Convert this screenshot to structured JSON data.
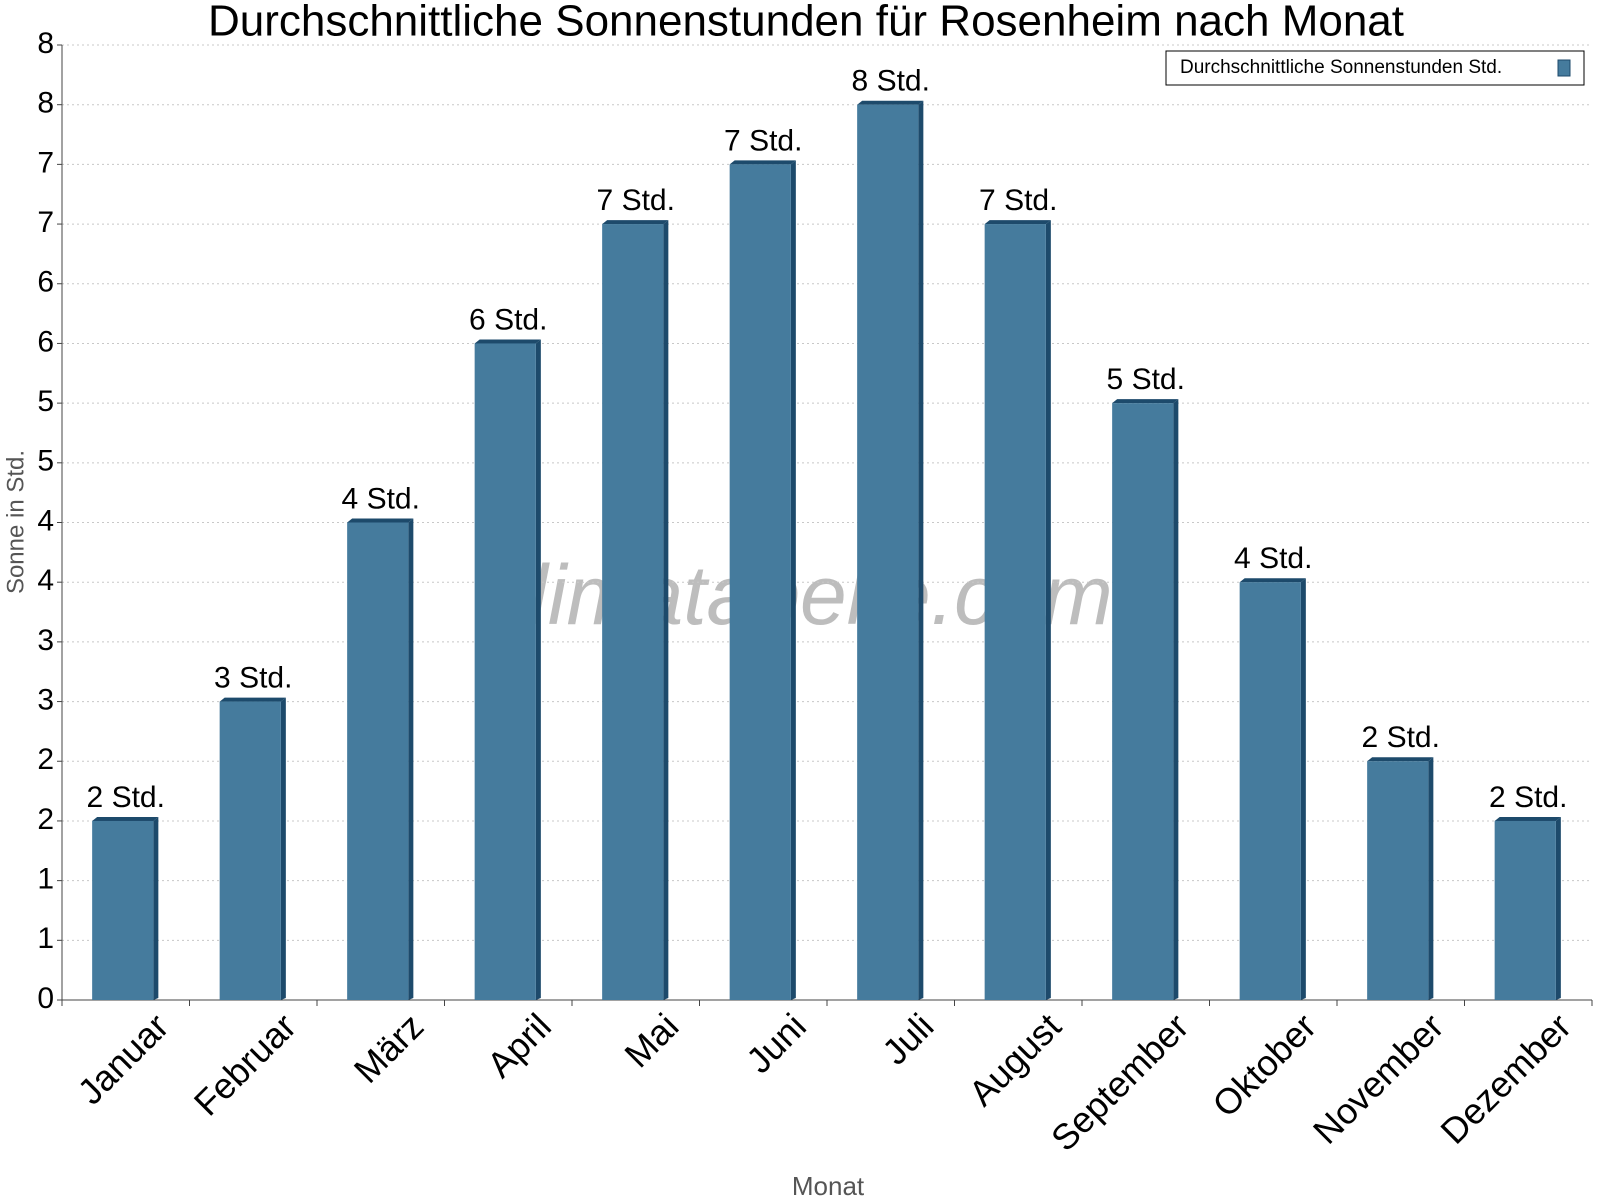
{
  "chart_data": {
    "type": "bar",
    "title": "Durchschnittliche Sonnenstunden für Rosenheim nach Monat",
    "x_label": "Monat",
    "y_label": "Sonne in Std.",
    "watermark": "klimatabelle.com",
    "categories": [
      "Januar",
      "Februar",
      "März",
      "April",
      "Mai",
      "Juni",
      "Juli",
      "August",
      "September",
      "Oktober",
      "November",
      "Dezember"
    ],
    "series": [
      {
        "name": "Durchschnittliche Sonnenstunden Std.",
        "color": "#457b9d",
        "values": [
          1.5,
          2.5,
          4.0,
          5.5,
          6.5,
          7.0,
          7.5,
          6.5,
          5.0,
          3.5,
          2.0,
          1.5
        ],
        "value_labels": [
          "2 Std.",
          "3 Std.",
          "4 Std.",
          "6 Std.",
          "7 Std.",
          "7 Std.",
          "8 Std.",
          "7 Std.",
          "5 Std.",
          "4 Std.",
          "2 Std.",
          "2 Std."
        ]
      }
    ],
    "ylim": [
      0,
      8
    ],
    "yticks": [
      0,
      {
        "value": 0.5,
        "label": "1"
      },
      1,
      {
        "value": 1.5,
        "label": "2"
      },
      2,
      {
        "value": 2.5,
        "label": "3"
      },
      3,
      {
        "value": 3.5,
        "label": "4"
      },
      4,
      {
        "value": 4.5,
        "label": "5"
      },
      5,
      {
        "value": 5.5,
        "label": "6"
      },
      6,
      {
        "value": 6.5,
        "label": "7"
      },
      7,
      {
        "value": 7.5,
        "label": "8"
      },
      8
    ],
    "grid": true,
    "legend": "upper right"
  }
}
